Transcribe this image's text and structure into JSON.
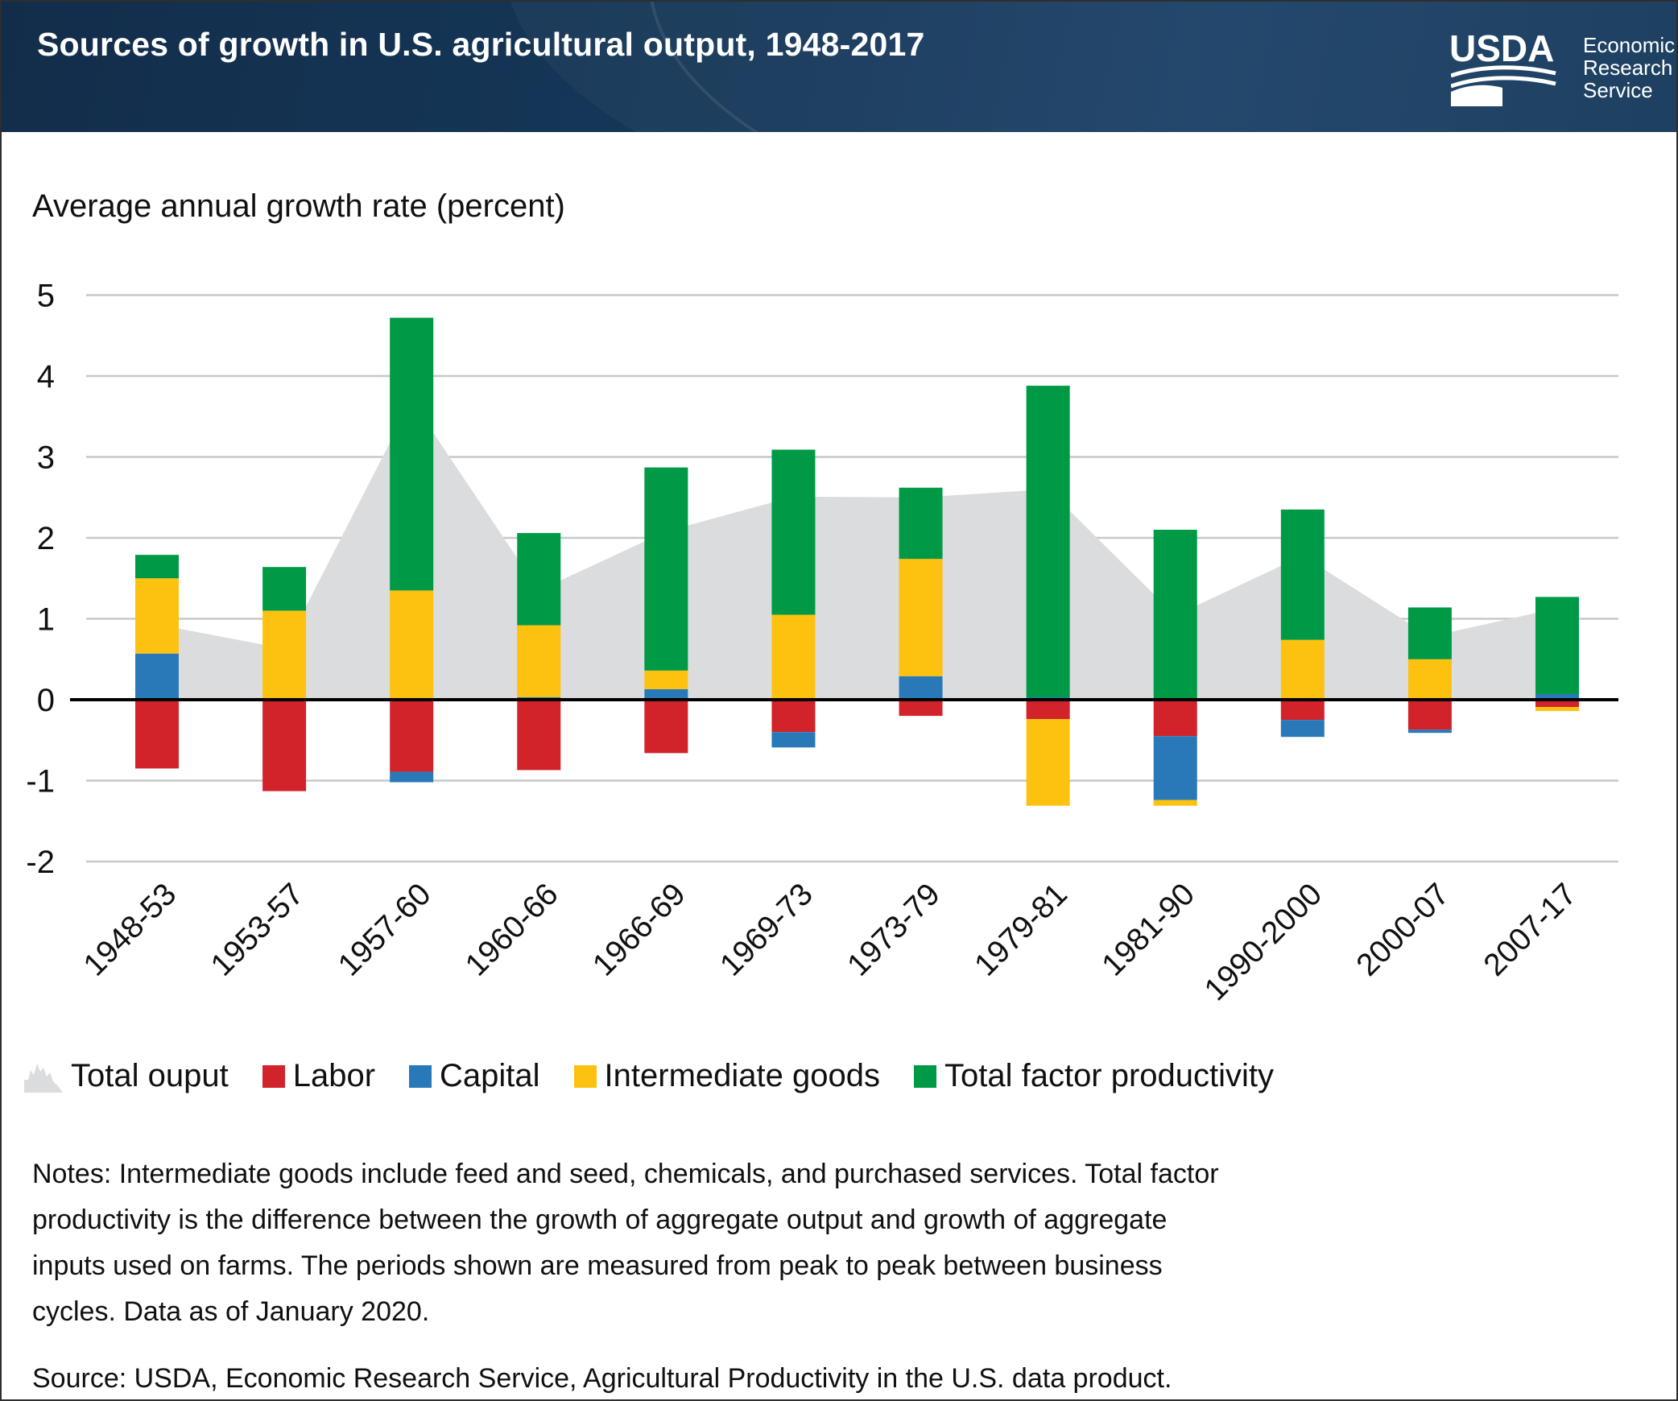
{
  "header": {
    "title": "Sources of growth in U.S. agricultural output, 1948-2017",
    "logo": {
      "org": "USDA",
      "unit_lines": [
        "Economic",
        "Research",
        "Service"
      ]
    }
  },
  "chart_data": {
    "type": "stacked-bar-with-area",
    "title": "Sources of growth in U.S. agricultural output, 1948-2017",
    "y_axis_title": "Average annual growth rate (percent)",
    "categories": [
      "1948-53",
      "1953-57",
      "1957-60",
      "1960-66",
      "1966-69",
      "1969-73",
      "1973-79",
      "1979-81",
      "1981-90",
      "1990-2000",
      "2000-07",
      "2007-17"
    ],
    "ylim": [
      -2,
      5
    ],
    "yticks": [
      5,
      4,
      3,
      2,
      1,
      0,
      -1,
      -2
    ],
    "grid": true,
    "legend_position": "bottom",
    "series": [
      {
        "name": "Total ouput",
        "type": "area",
        "color": "#DBDCDE",
        "values": [
          0.93,
          0.63,
          3.7,
          1.35,
          2.08,
          2.51,
          2.5,
          2.6,
          1.04,
          1.78,
          0.78,
          1.13
        ]
      },
      {
        "name": "Labor",
        "type": "bar",
        "color": "#D2232A",
        "values": [
          -0.85,
          -1.13,
          -0.89,
          -0.87,
          -0.66,
          -0.4,
          -0.2,
          -0.24,
          -0.45,
          -0.25,
          -0.37,
          -0.09
        ]
      },
      {
        "name": "Capital",
        "type": "bar",
        "color": "#2979B8",
        "values": [
          0.57,
          0.0,
          -0.13,
          0.03,
          0.13,
          -0.19,
          0.29,
          0.03,
          -0.79,
          -0.21,
          -0.04,
          0.07
        ]
      },
      {
        "name": "Intermediate goods",
        "type": "bar",
        "color": "#FDC110",
        "values": [
          0.93,
          1.1,
          1.35,
          0.89,
          0.23,
          1.05,
          1.45,
          -1.07,
          -0.07,
          0.74,
          0.5,
          -0.05
        ]
      },
      {
        "name": "Total factor productivity",
        "type": "bar",
        "color": "#009A47",
        "values": [
          0.29,
          0.54,
          3.37,
          1.14,
          2.51,
          2.04,
          0.88,
          3.85,
          2.1,
          1.61,
          0.64,
          1.2
        ]
      }
    ]
  },
  "notes": "Notes: Intermediate goods include feed and seed, chemicals, and purchased services. Total factor productivity is the difference between the growth of aggregate output and growth of aggregate inputs used on farms. The periods shown are measured from peak to peak between business cycles. Data as of January 2020.",
  "source": "Source: USDA, Economic Research Service, Agricultural Productivity in the U.S. data product."
}
